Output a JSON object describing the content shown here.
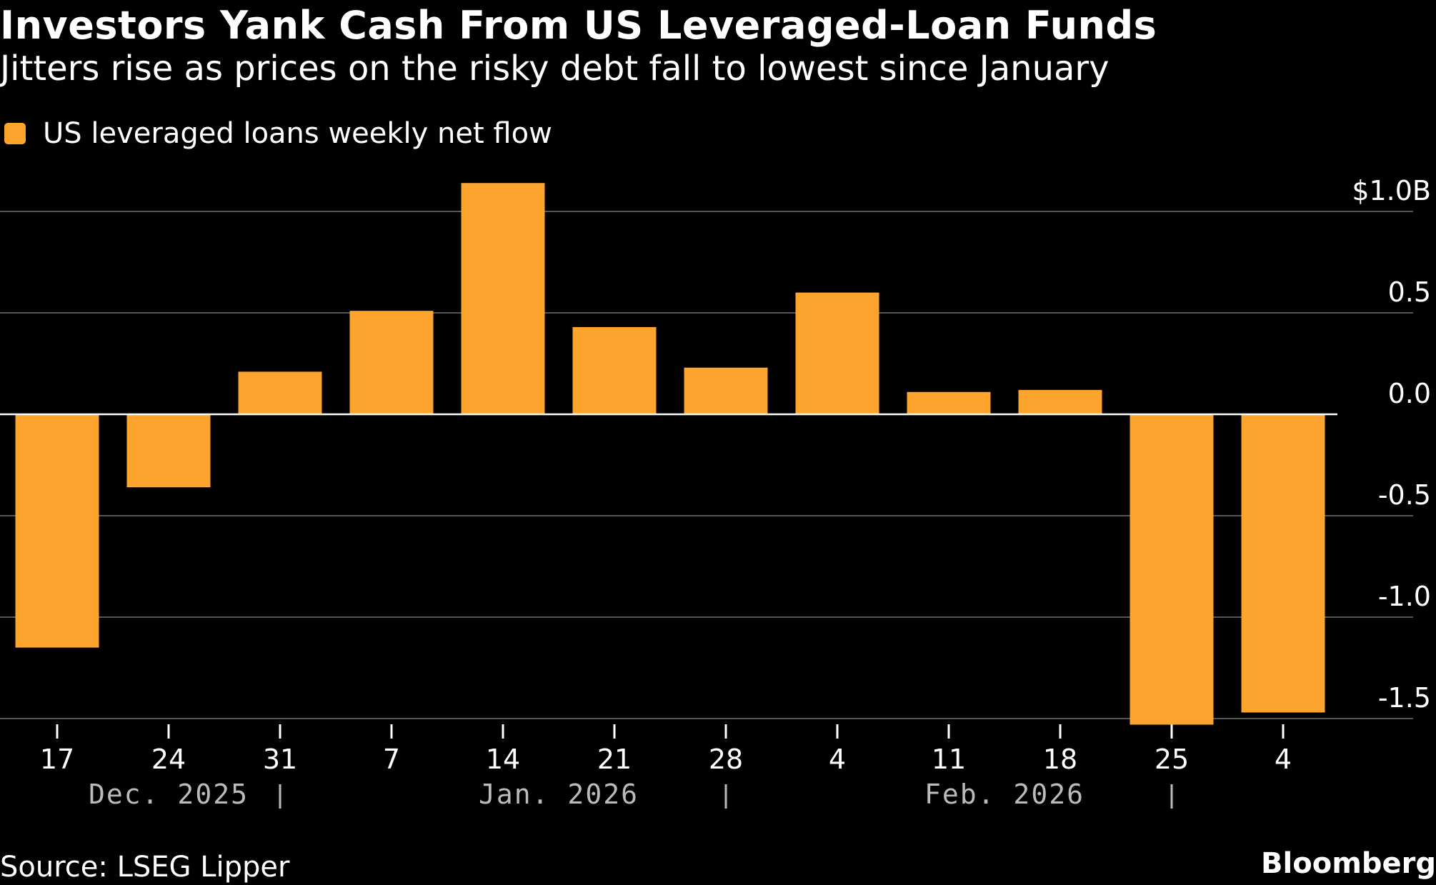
{
  "title": "Investors Yank Cash From US Leveraged-Loan Funds",
  "subtitle": "Jitters rise as prices on the risky debt fall to lowest since January",
  "source": "Source: LSEG Lipper",
  "brand": "Bloomberg",
  "colors": {
    "background": "#000000",
    "bar": "#FDA42E",
    "text": "#FFFFFF",
    "grid": "#555555",
    "zero_line": "#FFFFFF",
    "month_label": "#BBBBBB"
  },
  "chart_data": {
    "type": "bar",
    "legend": [
      {
        "name": "US leveraged loans weekly net flow",
        "color": "#FDA42E"
      }
    ],
    "legend_position": "top-left",
    "grid": true,
    "y_axis_position": "right",
    "categories": [
      "17",
      "24",
      "31",
      "7",
      "14",
      "21",
      "28",
      "4",
      "11",
      "18",
      "25",
      "4"
    ],
    "series": [
      {
        "name": "US leveraged loans weekly net flow",
        "values": [
          -1.15,
          -0.36,
          0.21,
          0.51,
          1.14,
          0.43,
          0.23,
          0.6,
          0.11,
          0.12,
          -1.53,
          -1.47
        ]
      }
    ],
    "ylim": [
      -1.5,
      1.0
    ],
    "y_ticks": [
      1.0,
      0.5,
      0.0,
      -0.5,
      -1.0,
      -1.5
    ],
    "y_tick_labels": [
      "$1.0B",
      "0.5",
      "0.0",
      "-0.5",
      "-1.0",
      "-1.5"
    ],
    "month_labels": [
      "Dec. 2025",
      "Jan. 2026",
      "Feb. 2026"
    ],
    "month_groups": [
      {
        "label": "Dec. 2025",
        "from_index": 0,
        "to_index": 2
      },
      {
        "label": "Jan. 2026",
        "from_index": 3,
        "to_index": 6
      },
      {
        "label": "Feb. 2026",
        "from_index": 7,
        "to_index": 10
      }
    ]
  }
}
